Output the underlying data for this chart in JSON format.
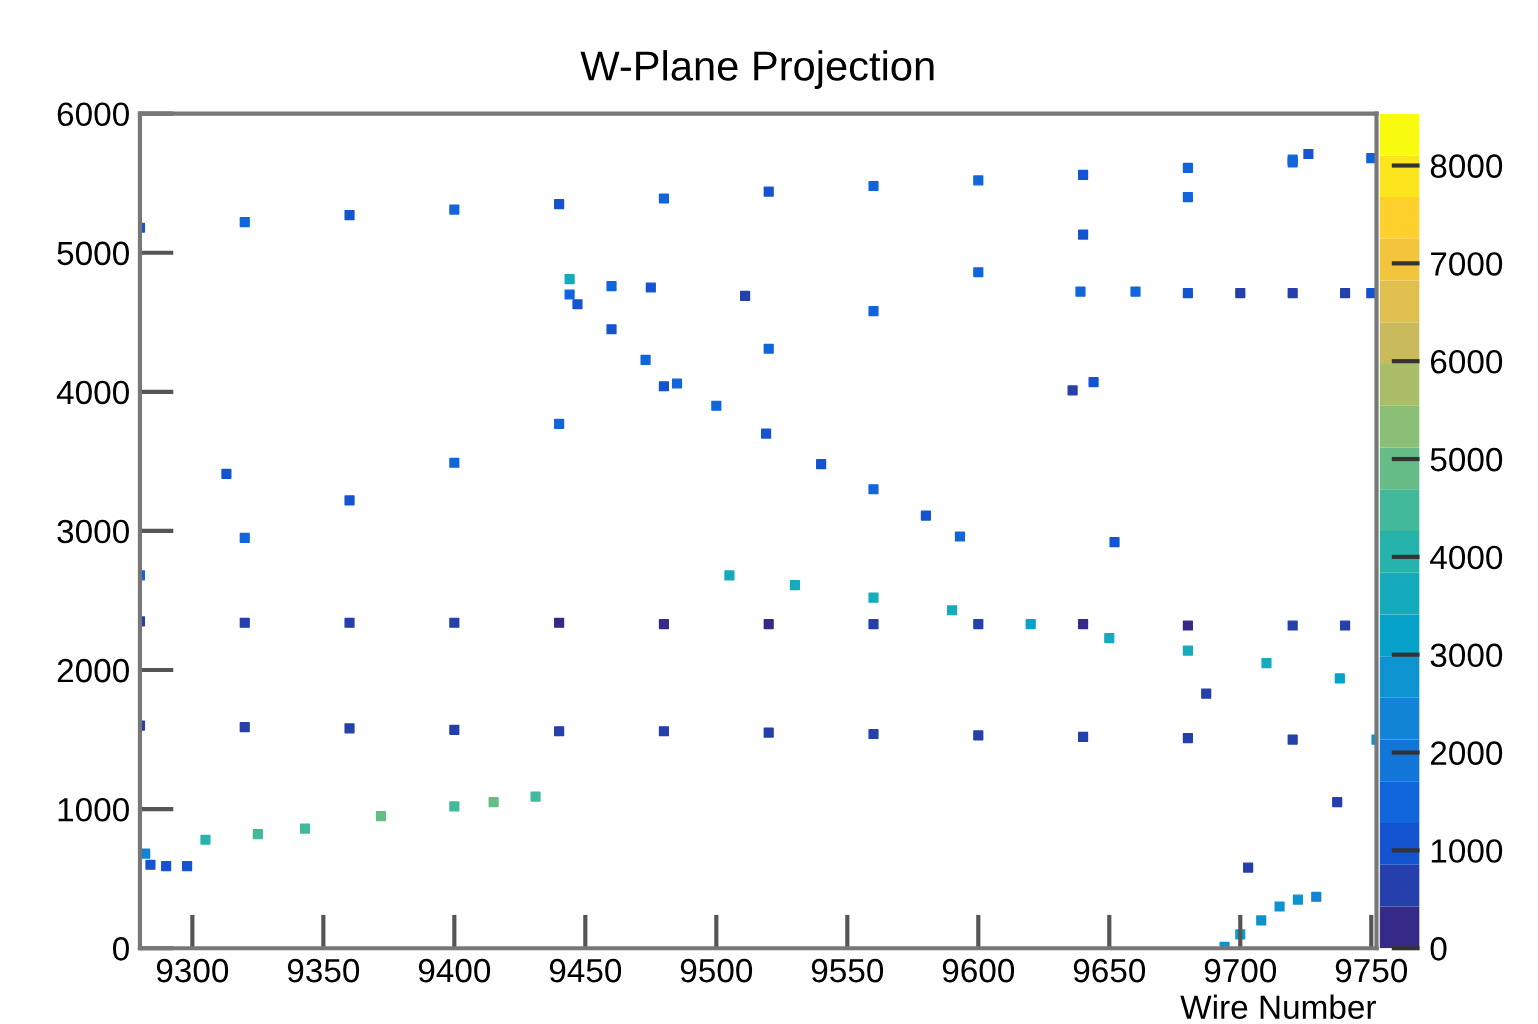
{
  "chart_data": {
    "type": "scatter",
    "title": "W-Plane Projection",
    "xlabel": "Wire Number",
    "xlim": [
      9280,
      9752
    ],
    "xticks": [
      9300,
      9350,
      9400,
      9450,
      9500,
      9550,
      9600,
      9650,
      9700,
      9750
    ],
    "ylim": [
      0,
      6000
    ],
    "yticks": [
      0,
      1000,
      2000,
      3000,
      4000,
      5000,
      6000
    ],
    "clim": [
      0,
      8530
    ],
    "cticks": [
      0,
      1000,
      2000,
      3000,
      4000,
      5000,
      6000,
      7000,
      8000
    ],
    "marker": "square",
    "x": [
      9280,
      9320,
      9360,
      9400,
      9440,
      9480,
      9520,
      9560,
      9600,
      9640,
      9680,
      9720,
      9750,
      9280,
      9320,
      9360,
      9400,
      9440,
      9480,
      9520,
      9560,
      9600,
      9640,
      9680,
      9720,
      9726,
      9280,
      9320,
      9360,
      9400,
      9440,
      9480,
      9520,
      9560,
      9600,
      9640,
      9680,
      9720,
      9740,
      9280,
      9320,
      9360,
      9400,
      9440,
      9480,
      9520,
      9560,
      9600,
      9640,
      9680,
      9720,
      9752,
      9475,
      9460,
      9444,
      9444,
      9447,
      9460,
      9473,
      9485,
      9500,
      9519,
      9540,
      9560,
      9580,
      9593,
      9639,
      9660,
      9680,
      9700,
      9720,
      9740,
      9750,
      9505,
      9530,
      9560,
      9590,
      9620,
      9650,
      9680,
      9710,
      9738,
      9282,
      9305,
      9325,
      9343,
      9372,
      9400,
      9415,
      9431,
      9284,
      9290,
      9298,
      9694,
      9700,
      9708,
      9715,
      9722,
      9729,
      9313,
      9511,
      9644,
      9636,
      9652,
      9687,
      9737,
      9703
    ],
    "values": [
      5180,
      5220,
      5270,
      5310,
      5350,
      5390,
      5440,
      5480,
      5520,
      5560,
      5610,
      5650,
      5680,
      2680,
      2950,
      3220,
      3490,
      3770,
      4040,
      4310,
      4580,
      4860,
      5130,
      5400,
      5670,
      5710,
      2350,
      2340,
      2340,
      2340,
      2340,
      2330,
      2330,
      2330,
      2330,
      2330,
      2320,
      2320,
      2320,
      1600,
      1590,
      1580,
      1570,
      1560,
      1560,
      1550,
      1540,
      1530,
      1520,
      1510,
      1500,
      1500,
      4750,
      4760,
      4810,
      4700,
      4630,
      4450,
      4230,
      4060,
      3900,
      3700,
      3480,
      3300,
      3110,
      2960,
      4720,
      4720,
      4710,
      4710,
      4710,
      4710,
      4710,
      2680,
      2610,
      2520,
      2430,
      2330,
      2230,
      2140,
      2050,
      1940,
      680,
      780,
      820,
      860,
      950,
      1020,
      1050,
      1090,
      600,
      590,
      590,
      10,
      100,
      200,
      300,
      350,
      370,
      3410,
      4690,
      4070,
      4010,
      2920,
      1830,
      1050,
      580
    ],
    "cvalues": [
      1200,
      1300,
      1200,
      1400,
      1200,
      1300,
      1200,
      1400,
      1300,
      1200,
      1500,
      1300,
      1400,
      1400,
      1300,
      1200,
      1300,
      1400,
      1200,
      1300,
      1500,
      1300,
      1200,
      1400,
      1300,
      1200,
      700,
      600,
      700,
      600,
      400,
      400,
      400,
      500,
      500,
      400,
      400,
      500,
      600,
      800,
      600,
      500,
      600,
      500,
      600,
      500,
      600,
      500,
      500,
      500,
      600,
      2800,
      1200,
      1400,
      3500,
      1300,
      1200,
      1200,
      1300,
      1500,
      1300,
      1200,
      1200,
      1300,
      1200,
      1300,
      1500,
      1300,
      1000,
      800,
      700,
      800,
      1000,
      3600,
      3800,
      3500,
      3700,
      3400,
      3600,
      3500,
      3800,
      3300,
      2500,
      4200,
      4600,
      4400,
      4800,
      4300,
      4700,
      4500,
      1000,
      900,
      1100,
      2800,
      3000,
      2700,
      2900,
      2600,
      2500,
      900,
      800,
      1000,
      800,
      900,
      700,
      800,
      600
    ]
  }
}
